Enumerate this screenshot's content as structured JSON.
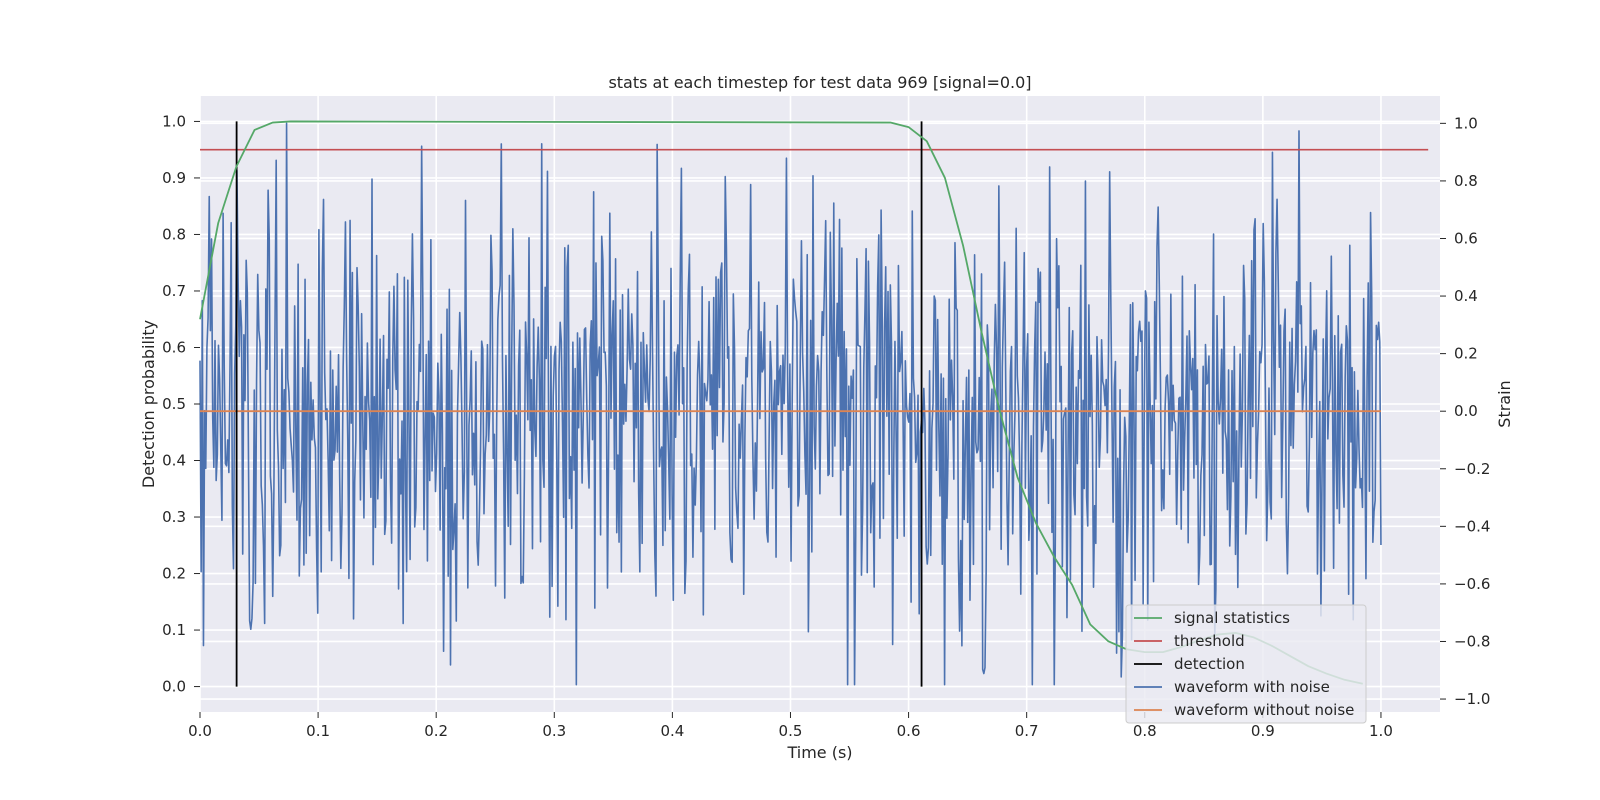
{
  "chart_data": {
    "type": "line",
    "title": "stats at each timestep for test data 969 [signal=0.0]",
    "xlabel": "Time (s)",
    "ylabel": "Detection probability",
    "y2label": "Strain",
    "xlim": [
      0.0,
      1.05
    ],
    "ylim": [
      -0.045,
      1.045
    ],
    "y2lim": [
      -1.045,
      1.095
    ],
    "x_ticks": [
      "0.0",
      "0.1",
      "0.2",
      "0.3",
      "0.4",
      "0.5",
      "0.6",
      "0.7",
      "0.8",
      "0.9",
      "1.0"
    ],
    "y_ticks": [
      "0.0",
      "0.1",
      "0.2",
      "0.3",
      "0.4",
      "0.5",
      "0.6",
      "0.7",
      "0.8",
      "0.9",
      "1.0"
    ],
    "y2_ticks": [
      "−1.0",
      "−0.8",
      "−0.6",
      "−0.4",
      "−0.2",
      "0.0",
      "0.2",
      "0.4",
      "0.6",
      "0.8",
      "1.0"
    ],
    "grid": true,
    "legend_position": "lower-right",
    "series": [
      {
        "name": "signal statistics",
        "color": "#55a868",
        "axis": "left",
        "x": [
          0.0,
          0.0154,
          0.0308,
          0.0462,
          0.0615,
          0.0769,
          0.5846,
          0.6,
          0.6154,
          0.6308,
          0.6462,
          0.6615,
          0.6769,
          0.6923,
          0.7077,
          0.7231,
          0.7385,
          0.7538,
          0.7692,
          0.7846,
          0.8,
          0.8154,
          0.8308,
          0.8462,
          0.8615,
          0.8769,
          0.8923,
          0.9077,
          0.9231,
          0.9385,
          0.9538,
          0.9692,
          0.9846
        ],
        "y": [
          0.65,
          0.82,
          0.92,
          0.985,
          0.998,
          1.0,
          0.998,
          0.99,
          0.965,
          0.9,
          0.78,
          0.63,
          0.49,
          0.37,
          0.29,
          0.23,
          0.18,
          0.11,
          0.08,
          0.066,
          0.061,
          0.061,
          0.07,
          0.082,
          0.092,
          0.095,
          0.087,
          0.072,
          0.054,
          0.036,
          0.023,
          0.012,
          0.005
        ]
      },
      {
        "name": "threshold",
        "color": "#c44e52",
        "axis": "left",
        "x": [
          0.0,
          1.04
        ],
        "y": [
          0.95,
          0.95
        ]
      },
      {
        "name": "detection",
        "color": "#000000",
        "axis": "left",
        "vertical_lines_x": [
          0.031,
          0.611
        ],
        "y_range": [
          0.0,
          1.0
        ]
      },
      {
        "name": "waveform with noise",
        "color": "#4c72b0",
        "axis": "right",
        "x_range": [
          0.0,
          1.0
        ],
        "n_points": 1024,
        "noise_std": 0.37,
        "seed": 969
      },
      {
        "name": "waveform without noise",
        "color": "#dd8452",
        "axis": "right",
        "x": [
          0.0,
          1.0
        ],
        "y": [
          0.0,
          0.0
        ]
      }
    ]
  }
}
